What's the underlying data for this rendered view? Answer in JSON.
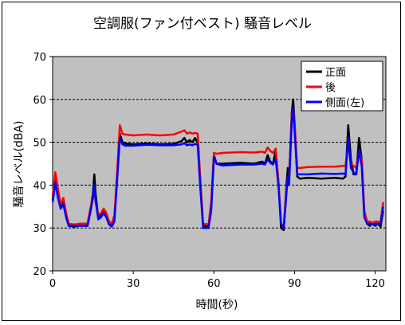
{
  "chart_data": {
    "type": "line",
    "title": "空調服(ファン付ベスト) 騒音レベル",
    "xlabel": "時間(秒)",
    "ylabel": "騒音レベル(dBA)",
    "xlim": [
      0,
      124
    ],
    "ylim": [
      20,
      70
    ],
    "x_ticks": [
      0,
      30,
      60,
      90,
      120
    ],
    "y_ticks": [
      20,
      30,
      40,
      50,
      60,
      70
    ],
    "grid": "horizontal dashed",
    "legend_position": "top-right",
    "background": "#c0c0c0",
    "series": [
      {
        "name": "正面",
        "color": "#000000",
        "points": [
          [
            0,
            36.5
          ],
          [
            1,
            42
          ],
          [
            2,
            38
          ],
          [
            3,
            35
          ],
          [
            4,
            36.5
          ],
          [
            5,
            33
          ],
          [
            6,
            30.5
          ],
          [
            8,
            30.3
          ],
          [
            10,
            30.5
          ],
          [
            13,
            30.5
          ],
          [
            14,
            34
          ],
          [
            15,
            38
          ],
          [
            15.5,
            42.5
          ],
          [
            16,
            38
          ],
          [
            17,
            32.5
          ],
          [
            18,
            33
          ],
          [
            19,
            34
          ],
          [
            20,
            33
          ],
          [
            21,
            31
          ],
          [
            22,
            30.5
          ],
          [
            23,
            32
          ],
          [
            24,
            42
          ],
          [
            25,
            52
          ],
          [
            26,
            50
          ],
          [
            27,
            49.7
          ],
          [
            30,
            49.5
          ],
          [
            35,
            49.7
          ],
          [
            40,
            49.5
          ],
          [
            45,
            49.6
          ],
          [
            48,
            50.3
          ],
          [
            49,
            51
          ],
          [
            50,
            50
          ],
          [
            51,
            50.5
          ],
          [
            52,
            50
          ],
          [
            53,
            51
          ],
          [
            54,
            49.8
          ],
          [
            55,
            40
          ],
          [
            56,
            30.5
          ],
          [
            58,
            30.3
          ],
          [
            59,
            35
          ],
          [
            60,
            47
          ],
          [
            61,
            45
          ],
          [
            63,
            45
          ],
          [
            70,
            45.2
          ],
          [
            75,
            45
          ],
          [
            78,
            45.5
          ],
          [
            79,
            45
          ],
          [
            80,
            47
          ],
          [
            81,
            45.5
          ],
          [
            82,
            45
          ],
          [
            83,
            48
          ],
          [
            84,
            41
          ],
          [
            85,
            30
          ],
          [
            86,
            29.5
          ],
          [
            87,
            40
          ],
          [
            87.5,
            44
          ],
          [
            88,
            41
          ],
          [
            89,
            57
          ],
          [
            89.5,
            60
          ],
          [
            90,
            55
          ],
          [
            91,
            42
          ],
          [
            92,
            41.5
          ],
          [
            95,
            41.7
          ],
          [
            100,
            41.5
          ],
          [
            105,
            41.7
          ],
          [
            108,
            41.5
          ],
          [
            109,
            42
          ],
          [
            110,
            54
          ],
          [
            111,
            46
          ],
          [
            112,
            42.5
          ],
          [
            113,
            42.5
          ],
          [
            114,
            51
          ],
          [
            115,
            46
          ],
          [
            116,
            33
          ],
          [
            117,
            31
          ],
          [
            118,
            30.5
          ],
          [
            119,
            31
          ],
          [
            120,
            30.5
          ],
          [
            121,
            31
          ],
          [
            122,
            30.3
          ],
          [
            123,
            34
          ]
        ]
      },
      {
        "name": "後",
        "color": "#ff0000",
        "points": [
          [
            0,
            37.5
          ],
          [
            1,
            43
          ],
          [
            2,
            39
          ],
          [
            3,
            35.5
          ],
          [
            4,
            37
          ],
          [
            5,
            33.5
          ],
          [
            6,
            31
          ],
          [
            8,
            30.8
          ],
          [
            10,
            31
          ],
          [
            13,
            31
          ],
          [
            14,
            34.5
          ],
          [
            15,
            37
          ],
          [
            15.5,
            39
          ],
          [
            16,
            36
          ],
          [
            17,
            33
          ],
          [
            18,
            33.5
          ],
          [
            19,
            34.5
          ],
          [
            20,
            33.5
          ],
          [
            21,
            31.5
          ],
          [
            22,
            31
          ],
          [
            23,
            33
          ],
          [
            24,
            43
          ],
          [
            25,
            54
          ],
          [
            26,
            52
          ],
          [
            27,
            51.8
          ],
          [
            30,
            51.6
          ],
          [
            35,
            51.8
          ],
          [
            40,
            51.6
          ],
          [
            45,
            51.8
          ],
          [
            48,
            52.5
          ],
          [
            49,
            52.8
          ],
          [
            50,
            52
          ],
          [
            51,
            52.3
          ],
          [
            52,
            52
          ],
          [
            53,
            52.2
          ],
          [
            54,
            52
          ],
          [
            55,
            41
          ],
          [
            56,
            31
          ],
          [
            58,
            30.8
          ],
          [
            59,
            36
          ],
          [
            60,
            47.5
          ],
          [
            61,
            47.3
          ],
          [
            63,
            47.5
          ],
          [
            70,
            47.7
          ],
          [
            75,
            47.6
          ],
          [
            78,
            47.8
          ],
          [
            79,
            47.5
          ],
          [
            80,
            48.8
          ],
          [
            81,
            48
          ],
          [
            82,
            47.5
          ],
          [
            83,
            48.5
          ],
          [
            84,
            41
          ],
          [
            85,
            31
          ],
          [
            86,
            30.5
          ],
          [
            87,
            39
          ],
          [
            87.5,
            42
          ],
          [
            88,
            41
          ],
          [
            89,
            56
          ],
          [
            89.5,
            58
          ],
          [
            90,
            55
          ],
          [
            91,
            44
          ],
          [
            92,
            44
          ],
          [
            95,
            44.2
          ],
          [
            100,
            44.3
          ],
          [
            105,
            44.3
          ],
          [
            108,
            44.5
          ],
          [
            109,
            44.5
          ],
          [
            110,
            50
          ],
          [
            111,
            45
          ],
          [
            112,
            44.5
          ],
          [
            113,
            44
          ],
          [
            114,
            48
          ],
          [
            115,
            46
          ],
          [
            116,
            34
          ],
          [
            117,
            31.5
          ],
          [
            118,
            31.5
          ],
          [
            119,
            31.2
          ],
          [
            120,
            31.5
          ],
          [
            121,
            31.5
          ],
          [
            122,
            31.3
          ],
          [
            123,
            36
          ]
        ]
      },
      {
        "name": "側面(左)",
        "color": "#0000ff",
        "points": [
          [
            0,
            36
          ],
          [
            1,
            40.5
          ],
          [
            2,
            37
          ],
          [
            3,
            34.5
          ],
          [
            4,
            35.5
          ],
          [
            5,
            32.5
          ],
          [
            6,
            30.5
          ],
          [
            8,
            30.5
          ],
          [
            10,
            30.5
          ],
          [
            13,
            30.5
          ],
          [
            14,
            33.5
          ],
          [
            15,
            37
          ],
          [
            15.5,
            40
          ],
          [
            16,
            36.5
          ],
          [
            17,
            32
          ],
          [
            18,
            32.5
          ],
          [
            19,
            33.5
          ],
          [
            20,
            32.5
          ],
          [
            21,
            30.8
          ],
          [
            22,
            30.3
          ],
          [
            23,
            31.5
          ],
          [
            24,
            41
          ],
          [
            25,
            51
          ],
          [
            26,
            49.5
          ],
          [
            27,
            49.2
          ],
          [
            30,
            49.2
          ],
          [
            35,
            49.4
          ],
          [
            40,
            49.3
          ],
          [
            45,
            49.3
          ],
          [
            48,
            49.5
          ],
          [
            49,
            49.8
          ],
          [
            50,
            49.3
          ],
          [
            51,
            49.5
          ],
          [
            52,
            49.3
          ],
          [
            53,
            49.6
          ],
          [
            54,
            49.4
          ],
          [
            55,
            39
          ],
          [
            56,
            30
          ],
          [
            58,
            30
          ],
          [
            59,
            34
          ],
          [
            60,
            46.5
          ],
          [
            61,
            45
          ],
          [
            63,
            44.6
          ],
          [
            70,
            44.8
          ],
          [
            75,
            44.8
          ],
          [
            78,
            45
          ],
          [
            79,
            44.8
          ],
          [
            80,
            46
          ],
          [
            81,
            45.2
          ],
          [
            82,
            44.8
          ],
          [
            83,
            46
          ],
          [
            84,
            40
          ],
          [
            85,
            31
          ],
          [
            86,
            30
          ],
          [
            87,
            38
          ],
          [
            87.5,
            42
          ],
          [
            88,
            40
          ],
          [
            89,
            55
          ],
          [
            89.5,
            58
          ],
          [
            90,
            53
          ],
          [
            91,
            42.5
          ],
          [
            92,
            42.5
          ],
          [
            95,
            42.5
          ],
          [
            100,
            42.7
          ],
          [
            105,
            42.6
          ],
          [
            108,
            42.7
          ],
          [
            109,
            42.5
          ],
          [
            110,
            51
          ],
          [
            111,
            44
          ],
          [
            112,
            43
          ],
          [
            113,
            42.5
          ],
          [
            114,
            48
          ],
          [
            115,
            44.5
          ],
          [
            116,
            32.5
          ],
          [
            117,
            31
          ],
          [
            118,
            31
          ],
          [
            119,
            30.8
          ],
          [
            120,
            31
          ],
          [
            121,
            31
          ],
          [
            122,
            30.8
          ],
          [
            123,
            35
          ]
        ]
      }
    ]
  }
}
